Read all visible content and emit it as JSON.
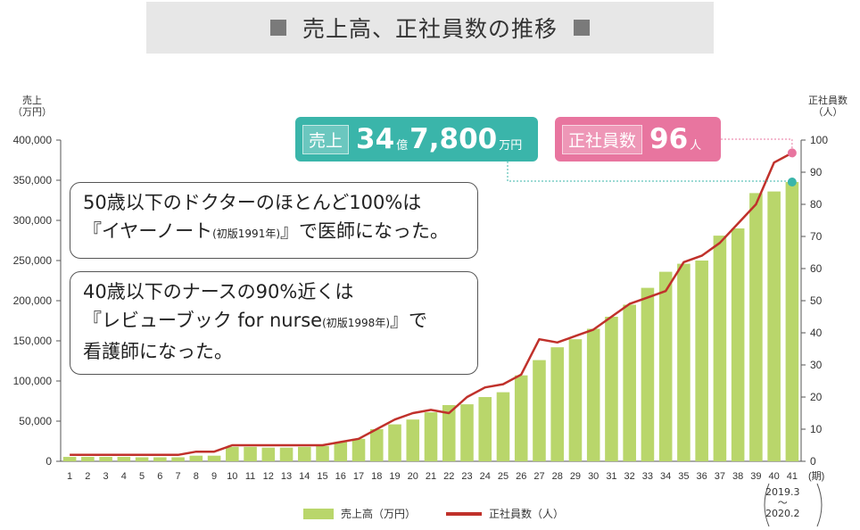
{
  "title": "売上高、正社員数の推移",
  "chart_data": {
    "type": "bar",
    "categories": [
      "1",
      "2",
      "3",
      "4",
      "5",
      "6",
      "7",
      "8",
      "9",
      "10",
      "11",
      "12",
      "13",
      "14",
      "15",
      "16",
      "17",
      "18",
      "19",
      "20",
      "21",
      "22",
      "23",
      "24",
      "25",
      "26",
      "27",
      "28",
      "29",
      "30",
      "31",
      "32",
      "33",
      "34",
      "35",
      "36",
      "37",
      "38",
      "39",
      "40",
      "41"
    ],
    "x_unit": "(期)",
    "last_period_range": [
      "2019.3",
      "〜",
      "2020.2"
    ],
    "series": [
      {
        "name": "売上高（万円）",
        "type": "bar",
        "axis": "left",
        "color": "#b9d66b",
        "values": [
          5500,
          5500,
          5500,
          5500,
          5000,
          5000,
          5000,
          7000,
          7000,
          18000,
          18000,
          17000,
          17000,
          18000,
          19000,
          24000,
          28000,
          40000,
          46000,
          52000,
          61000,
          70000,
          71000,
          80000,
          86000,
          107000,
          126000,
          142000,
          152000,
          165000,
          180000,
          195000,
          216000,
          236000,
          246000,
          250000,
          281000,
          290000,
          334000,
          336000,
          347800
        ]
      },
      {
        "name": "正社員数（人）",
        "type": "line",
        "axis": "right",
        "color": "#c0312b",
        "values": [
          2,
          2,
          2,
          2,
          2,
          2,
          2,
          3,
          3,
          5,
          5,
          5,
          5,
          5,
          5,
          6,
          7,
          10,
          13,
          15,
          16,
          15,
          20,
          23,
          24,
          27,
          38,
          37,
          39,
          41,
          45,
          49,
          51,
          53,
          62,
          64,
          68,
          74,
          80,
          93,
          96
        ]
      }
    ],
    "y_left": {
      "label": [
        "売上",
        "（万円）"
      ],
      "ylim": [
        0,
        400000
      ],
      "ticks": [
        "0",
        "50,000",
        "100,000",
        "150,000",
        "200,000",
        "250,000",
        "300,000",
        "350,000",
        "400,000"
      ]
    },
    "y_right": {
      "label": [
        "正社員数",
        "（人）"
      ],
      "ylim": [
        0,
        100
      ],
      "ticks": [
        "0",
        "10",
        "20",
        "30",
        "40",
        "50",
        "60",
        "70",
        "80",
        "90",
        "100"
      ]
    },
    "grid": false,
    "legend": "bottom-center",
    "callouts": {
      "sales": {
        "label": "売上",
        "value1": "34",
        "unit1": "億",
        "value2": "7,800",
        "unit2": "万円",
        "color": "#3ab5aa"
      },
      "staff": {
        "label": "正社員数",
        "value": "96",
        "unit": "人",
        "color": "#e8759f"
      }
    }
  },
  "notes": [
    {
      "line1": "50歳以下のドクターのほとんど100%は",
      "line2a": "『イヤーノート",
      "line2b": "(初版1991年)",
      "line2c": "』で医師になった。"
    },
    {
      "line1": "40歳以下のナースの90%近くは",
      "line2a": "『レビューブック for nurse",
      "line2b": "(初版1998年)",
      "line2c": "』で",
      "line3": "看護師になった。"
    }
  ]
}
